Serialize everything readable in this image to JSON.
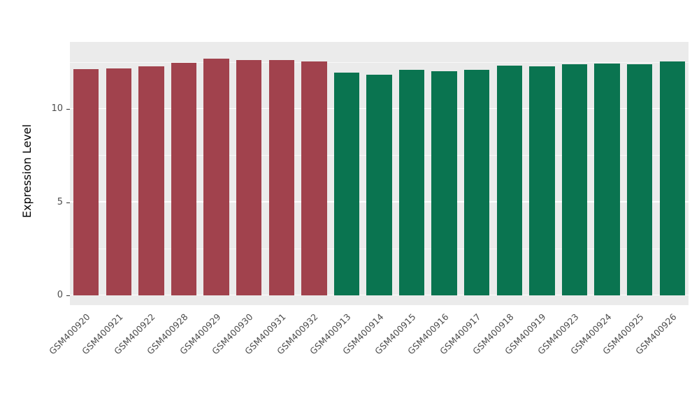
{
  "chart_data": {
    "type": "bar",
    "title": "",
    "ylabel": "Expression Level",
    "xlabel": "",
    "categories": [
      "GSM400920",
      "GSM400921",
      "GSM400922",
      "GSM400928",
      "GSM400929",
      "GSM400930",
      "GSM400931",
      "GSM400932",
      "GSM400913",
      "GSM400914",
      "GSM400915",
      "GSM400916",
      "GSM400917",
      "GSM400918",
      "GSM400919",
      "GSM400923",
      "GSM400924",
      "GSM400925",
      "GSM400926"
    ],
    "values": [
      12.15,
      12.2,
      12.3,
      12.5,
      12.7,
      12.65,
      12.65,
      12.55,
      11.95,
      11.85,
      12.1,
      12.05,
      12.1,
      12.35,
      12.3,
      12.4,
      12.45,
      12.4,
      12.55
    ],
    "groups": [
      "A",
      "A",
      "A",
      "A",
      "A",
      "A",
      "A",
      "A",
      "B",
      "B",
      "B",
      "B",
      "B",
      "B",
      "B",
      "B",
      "B",
      "B",
      "B"
    ],
    "group_colors": {
      "A": "#A1424D",
      "B": "#0A7450"
    },
    "yticks": [
      0,
      5,
      10
    ],
    "minor_gridlines": [
      2.5,
      7.5,
      12.5
    ],
    "ylim": [
      0,
      13.2
    ],
    "grid": "on",
    "legend": "none",
    "panel_bg": "#EBEBEB",
    "grid_color": "#FFFFFF"
  }
}
